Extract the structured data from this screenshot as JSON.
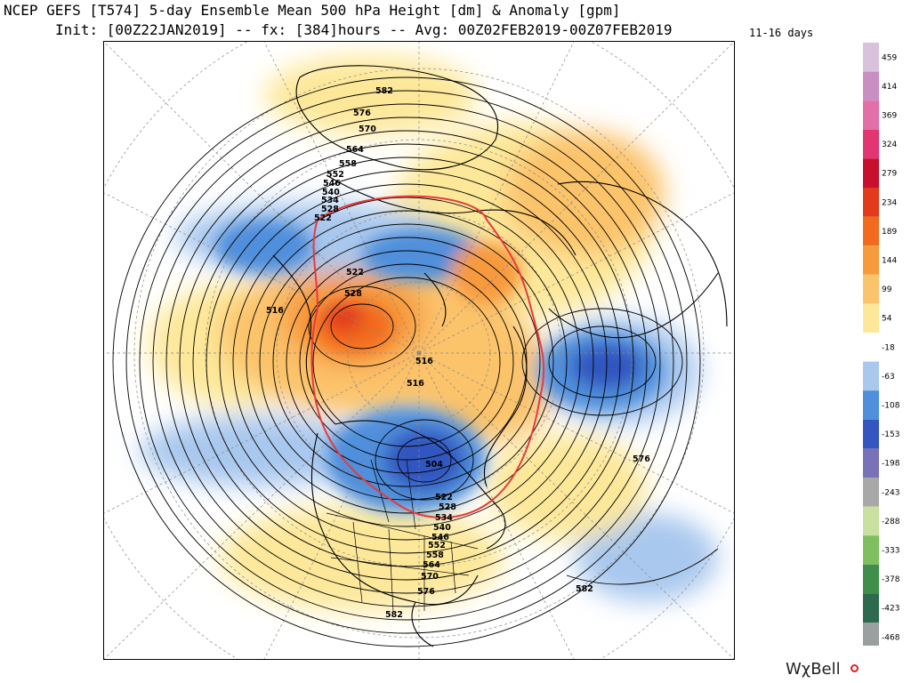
{
  "header": {
    "title_line1": "NCEP GEFS [T574] 5-day Ensemble Mean 500 hPa Height [dm] & Anomaly [gpm]",
    "title_line2": "Init: [00Z22JAN2019] -- fx: [384]hours -- Avg: 00Z02FEB2019-00Z07FEB2019",
    "period": "11-16 days"
  },
  "colorbar": {
    "labels": [
      "459",
      "414",
      "369",
      "324",
      "279",
      "234",
      "189",
      "144",
      "99",
      "54",
      "-18",
      "-63",
      "-108",
      "-153",
      "-198",
      "-243",
      "-288",
      "-333",
      "-378",
      "-423",
      "-468"
    ],
    "colors": [
      "#d9c2dc",
      "#c98fc2",
      "#e26fa8",
      "#e23673",
      "#c8102e",
      "#e23a1b",
      "#f26a1d",
      "#f79a3c",
      "#fbc36b",
      "#fde89a",
      "#ffffff",
      "#a9c8ee",
      "#4f8fdc",
      "#3356c0",
      "#7a72b8",
      "#a8a8a8",
      "#c9e0a0",
      "#7fbf5e",
      "#3f8f4a",
      "#2d6a4e",
      "#9aa0a0"
    ]
  },
  "contour_labels": [
    "582",
    "576",
    "570",
    "564",
    "558",
    "552",
    "546",
    "540",
    "534",
    "528",
    "522",
    "528",
    "522",
    "516",
    "516",
    "516",
    "504",
    "522",
    "528",
    "534",
    "540",
    "546",
    "552",
    "558",
    "564",
    "570",
    "576",
    "582",
    "576",
    "582"
  ],
  "brand": {
    "name": "WχBell"
  }
}
